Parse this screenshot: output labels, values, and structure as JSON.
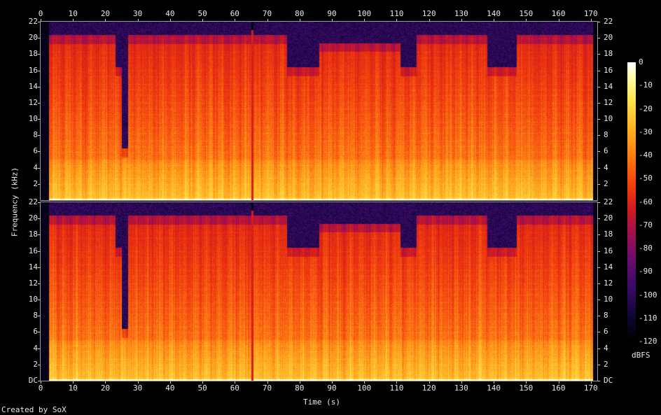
{
  "chart_data": {
    "type": "heatmap",
    "title": "",
    "xlabel": "Time (s)",
    "ylabel": "Frequency (kHz)",
    "xlim": [
      0,
      172
    ],
    "ylim": [
      0,
      22
    ],
    "x_ticks": [
      "0",
      "10",
      "20",
      "30",
      "40",
      "50",
      "60",
      "70",
      "80",
      "90",
      "100",
      "110",
      "120",
      "130",
      "140",
      "150",
      "160",
      "170"
    ],
    "y_ticks": [
      "DC",
      "2",
      "4",
      "6",
      "8",
      "10",
      "12",
      "14",
      "16",
      "18",
      "20",
      "22"
    ],
    "channels": [
      "channel-1",
      "channel-2"
    ],
    "colorbar": {
      "label": "dBFS",
      "ticks": [
        "0",
        "-10",
        "-20",
        "-30",
        "-40",
        "-50",
        "-60",
        "-70",
        "-80",
        "-90",
        "-100",
        "-110",
        "-120"
      ],
      "range": [
        -120,
        0
      ]
    },
    "segments": [
      {
        "start": 2.5,
        "end": 23,
        "cutoff_khz": 20
      },
      {
        "start": 23,
        "end": 25,
        "cutoff_khz": 16
      },
      {
        "start": 25,
        "end": 27,
        "cutoff_khz": 6
      },
      {
        "start": 27,
        "end": 65,
        "cutoff_khz": 20
      },
      {
        "start": 65,
        "end": 65.7,
        "cutoff_khz": 0
      },
      {
        "start": 65.7,
        "end": 76,
        "cutoff_khz": 20
      },
      {
        "start": 76,
        "end": 86,
        "cutoff_khz": 16
      },
      {
        "start": 86,
        "end": 111,
        "cutoff_khz": 19
      },
      {
        "start": 111,
        "end": 116,
        "cutoff_khz": 16
      },
      {
        "start": 116,
        "end": 138,
        "cutoff_khz": 20
      },
      {
        "start": 138,
        "end": 147,
        "cutoff_khz": 16
      },
      {
        "start": 147,
        "end": 170.5,
        "cutoff_khz": 20
      }
    ],
    "grid": false,
    "legend": "colorbar-right"
  },
  "footer": {
    "credit": "Created by SoX"
  }
}
